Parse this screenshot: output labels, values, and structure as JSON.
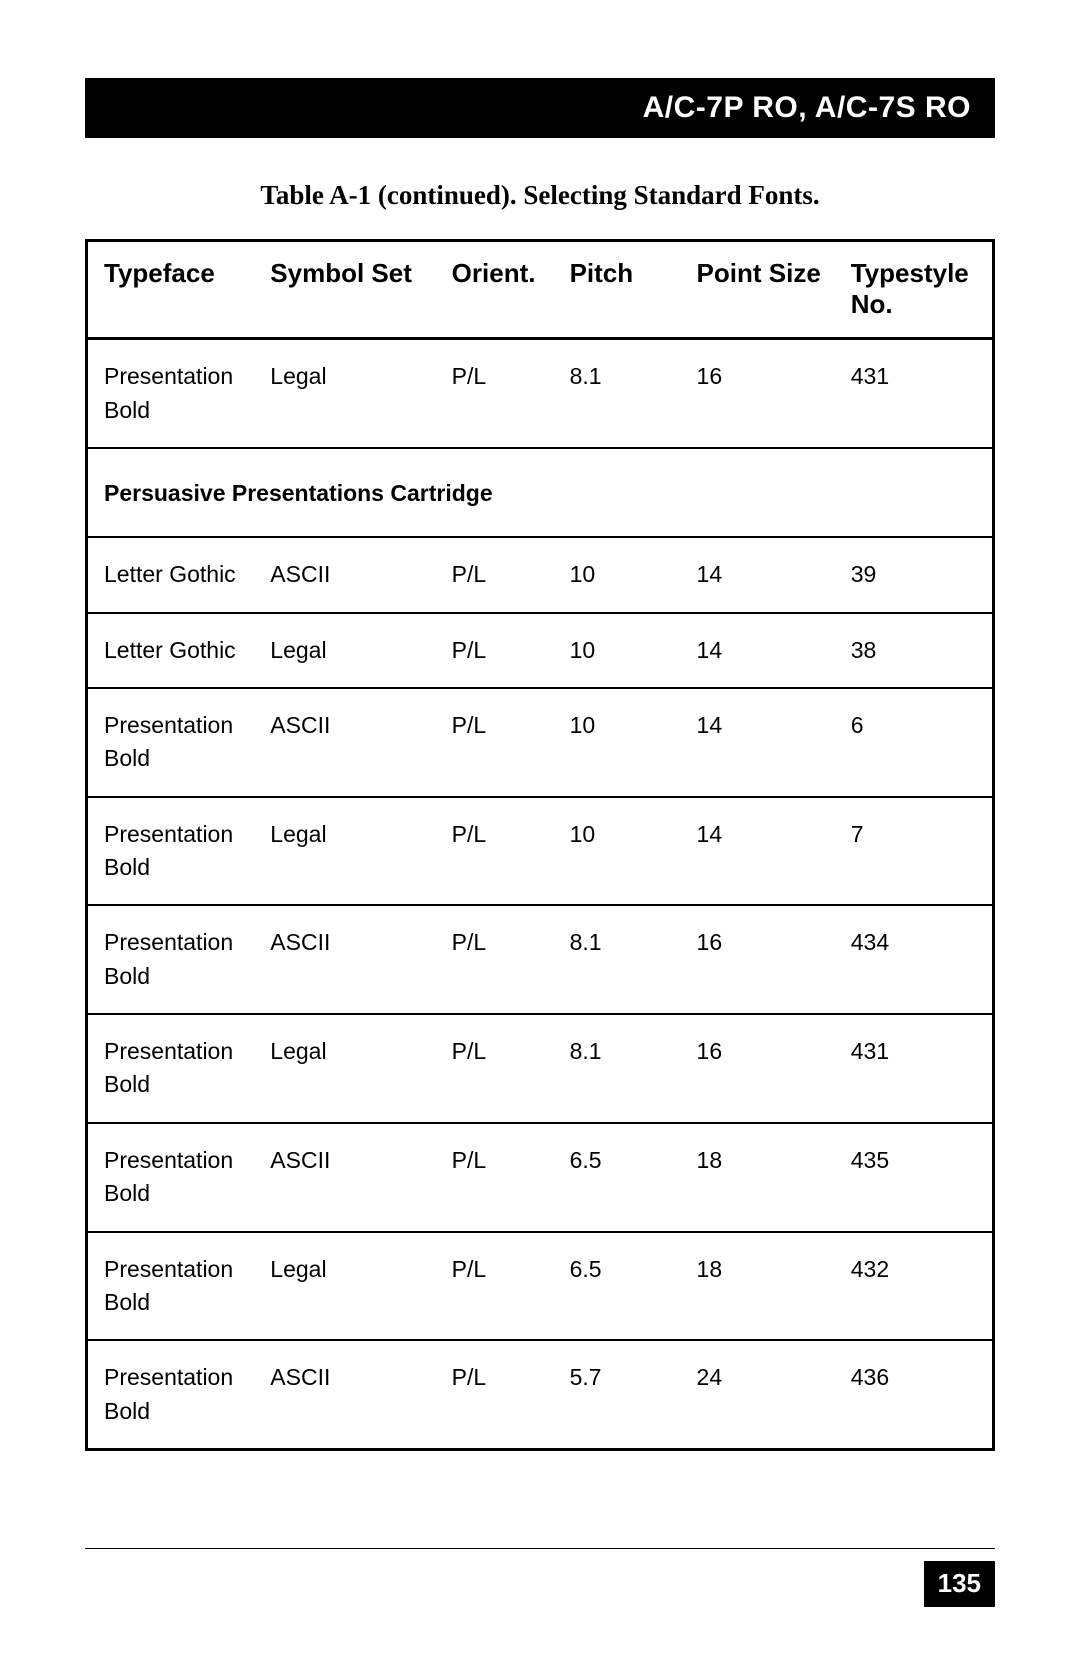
{
  "header": {
    "title": "A/C-7P RO, A/C-7S RO"
  },
  "caption": "Table A-1 (continued). Selecting Standard Fonts.",
  "table": {
    "columns": {
      "typeface": "Typeface",
      "symbolset": "Symbol Set",
      "orient": "Orient.",
      "pitch": "Pitch",
      "point": "Point Size",
      "typestyle": "Typestyle No."
    },
    "first_row": {
      "typeface": "Presentation Bold",
      "symbolset": "Legal",
      "orient": "P/L",
      "pitch": "8.1",
      "point": "16",
      "typestyle": "431"
    },
    "section_title": "Persuasive Presentations Cartridge",
    "rows": [
      {
        "typeface": "Letter Gothic",
        "symbolset": "ASCII",
        "orient": "P/L",
        "pitch": "10",
        "point": "14",
        "typestyle": "39"
      },
      {
        "typeface": "Letter Gothic",
        "symbolset": "Legal",
        "orient": "P/L",
        "pitch": "10",
        "point": "14",
        "typestyle": "38"
      },
      {
        "typeface": "Presentation Bold",
        "symbolset": "ASCII",
        "orient": "P/L",
        "pitch": "10",
        "point": "14",
        "typestyle": "6"
      },
      {
        "typeface": "Presentation Bold",
        "symbolset": "Legal",
        "orient": "P/L",
        "pitch": "10",
        "point": "14",
        "typestyle": "7"
      },
      {
        "typeface": "Presentation Bold",
        "symbolset": "ASCII",
        "orient": "P/L",
        "pitch": "8.1",
        "point": "16",
        "typestyle": "434"
      },
      {
        "typeface": "Presentation Bold",
        "symbolset": "Legal",
        "orient": "P/L",
        "pitch": "8.1",
        "point": "16",
        "typestyle": "431"
      },
      {
        "typeface": "Presentation Bold",
        "symbolset": "ASCII",
        "orient": "P/L",
        "pitch": "6.5",
        "point": "18",
        "typestyle": "435"
      },
      {
        "typeface": "Presentation Bold",
        "symbolset": "Legal",
        "orient": "P/L",
        "pitch": "6.5",
        "point": "18",
        "typestyle": "432"
      },
      {
        "typeface": "Presentation Bold",
        "symbolset": "ASCII",
        "orient": "P/L",
        "pitch": "5.7",
        "point": "24",
        "typestyle": "436"
      }
    ]
  },
  "page_number": "135"
}
